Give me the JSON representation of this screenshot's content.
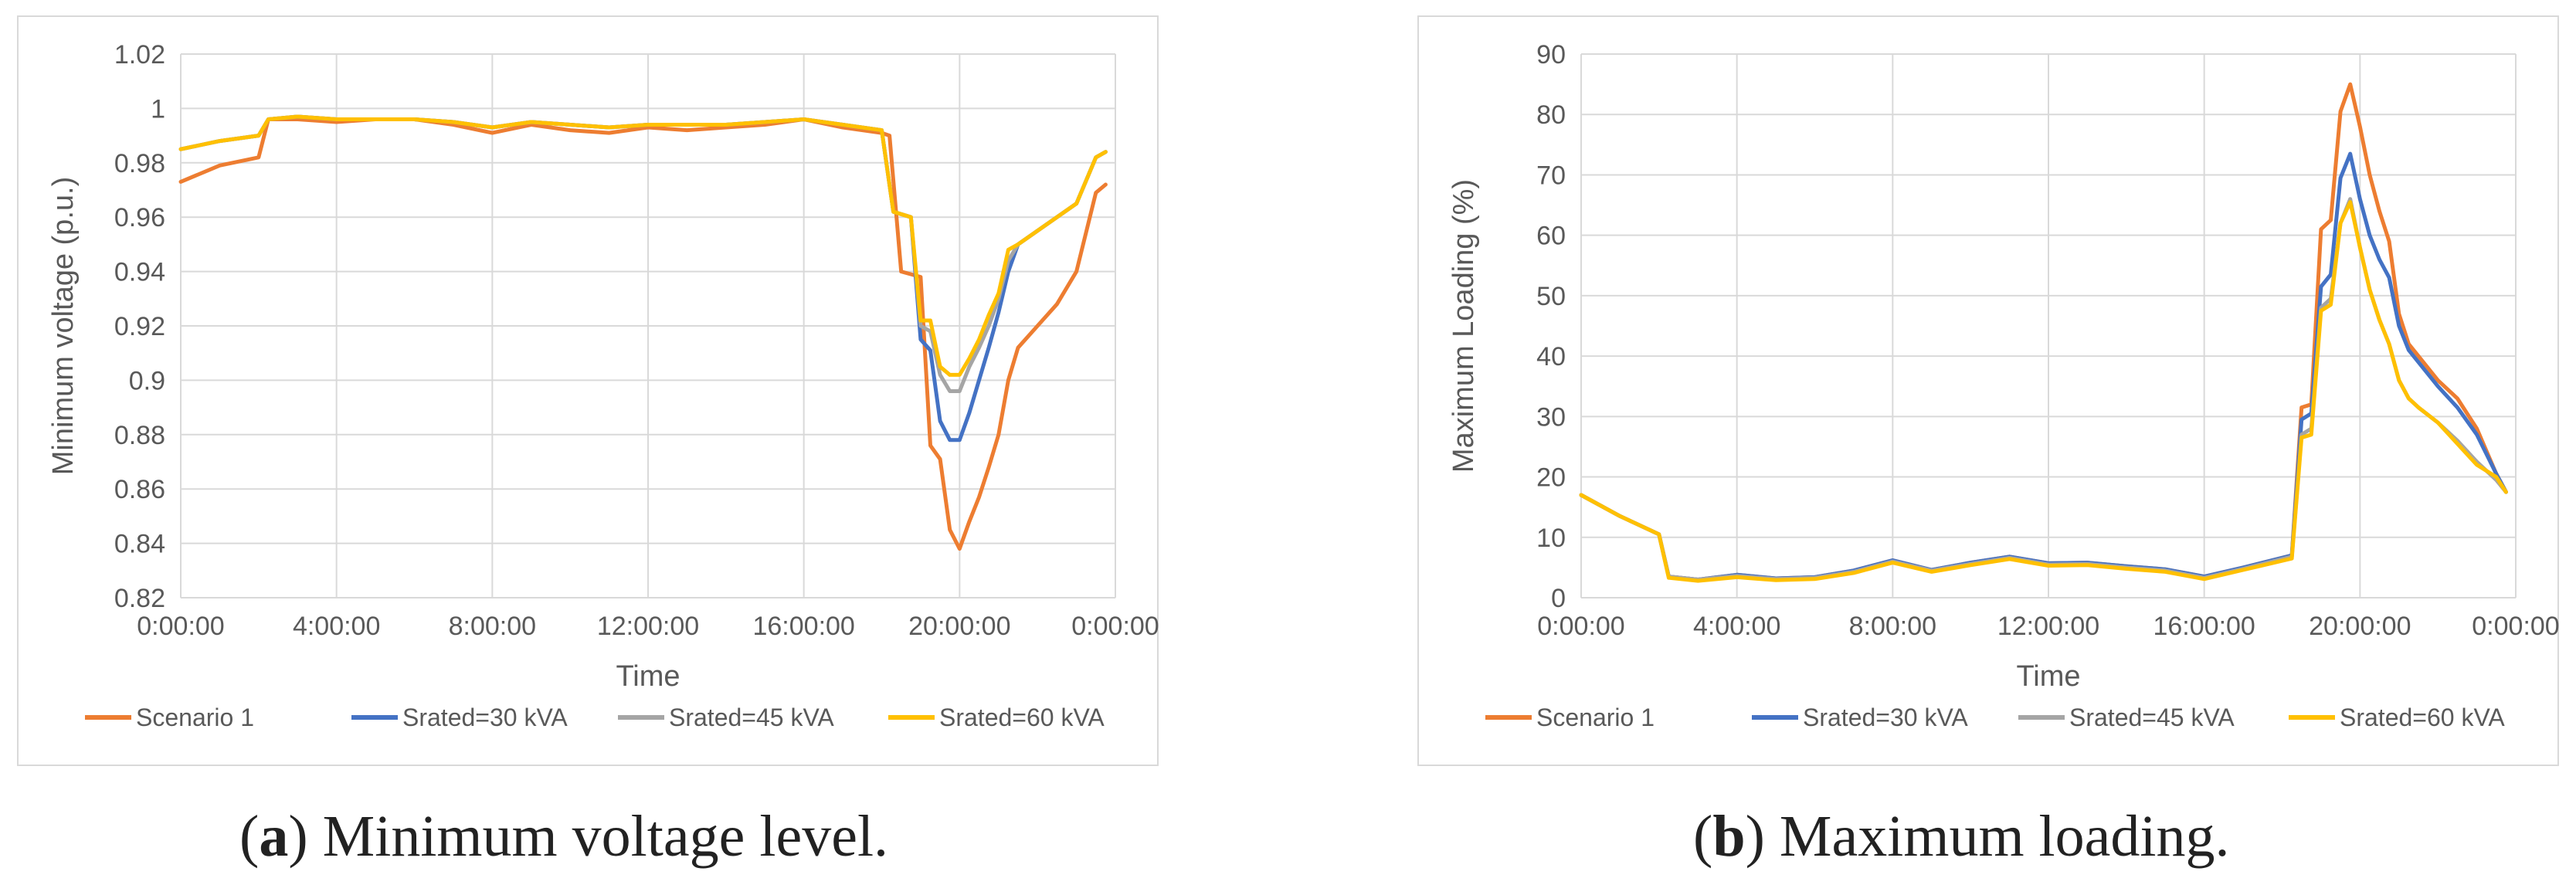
{
  "colors": {
    "scenario1": "#ED7D31",
    "s30": "#4472C4",
    "s45": "#A5A5A5",
    "s60": "#FFC000",
    "grid": "#d9d9d9",
    "text": "#595959"
  },
  "captions": {
    "a": {
      "tag": "a",
      "open": "(",
      "close": ")",
      "text": "Minimum voltage level."
    },
    "b": {
      "tag": "b",
      "open": "(",
      "close": ")",
      "text": "Maximum loading."
    }
  },
  "chart_data": [
    {
      "id": "a",
      "type": "line",
      "title": "",
      "xlabel": "Time",
      "ylabel": "Minimum voltage (p.u.)",
      "xlim": [
        0,
        24
      ],
      "ylim": [
        0.82,
        1.02
      ],
      "yticks": [
        0.82,
        0.84,
        0.86,
        0.88,
        0.9,
        0.92,
        0.94,
        0.96,
        0.98,
        1,
        1.02
      ],
      "ytick_labels": [
        "0.82",
        "0.84",
        "0.86",
        "0.88",
        "0.9",
        "0.92",
        "0.94",
        "0.96",
        "0.98",
        "1",
        "1.02"
      ],
      "xticks": [
        0,
        4,
        8,
        12,
        16,
        20,
        24
      ],
      "xtick_labels": [
        "0:00:00",
        "4:00:00",
        "8:00:00",
        "12:00:00",
        "16:00:00",
        "20:00:00",
        "0:00:00"
      ],
      "legend_position": "bottom",
      "series": [
        {
          "name": "Scenario 1",
          "color_key": "scenario1",
          "x": [
            0,
            1,
            2,
            2.25,
            3,
            4,
            5,
            6,
            7,
            8,
            9,
            10,
            11,
            12,
            13,
            14,
            15,
            16,
            17,
            18,
            18.2,
            18.5,
            18.75,
            19,
            19.25,
            19.5,
            19.75,
            20,
            20.25,
            20.5,
            20.75,
            21,
            21.25,
            21.5,
            22,
            22.5,
            23,
            23.5,
            23.75
          ],
          "y": [
            0.973,
            0.979,
            0.982,
            0.996,
            0.996,
            0.995,
            0.996,
            0.996,
            0.994,
            0.991,
            0.994,
            0.992,
            0.991,
            0.993,
            0.992,
            0.993,
            0.994,
            0.996,
            0.993,
            0.991,
            0.99,
            0.94,
            0.939,
            0.938,
            0.876,
            0.871,
            0.845,
            0.838,
            0.848,
            0.857,
            0.868,
            0.88,
            0.9,
            0.912,
            0.92,
            0.928,
            0.94,
            0.969,
            0.972
          ]
        },
        {
          "name": "Srated=30 kVA",
          "color_key": "s30",
          "x": [
            0,
            1,
            2,
            2.25,
            3,
            4,
            5,
            6,
            7,
            8,
            9,
            10,
            11,
            12,
            13,
            14,
            15,
            16,
            17,
            18,
            18.3,
            18.75,
            19,
            19.25,
            19.5,
            19.75,
            20,
            20.25,
            20.5,
            20.75,
            21,
            21.25,
            21.5,
            22,
            22.5,
            23,
            23.5,
            23.75
          ],
          "y": [
            0.985,
            0.988,
            0.99,
            0.996,
            0.997,
            0.996,
            0.996,
            0.996,
            0.995,
            0.993,
            0.995,
            0.994,
            0.993,
            0.994,
            0.994,
            0.994,
            0.995,
            0.996,
            0.994,
            0.992,
            0.962,
            0.96,
            0.915,
            0.911,
            0.885,
            0.878,
            0.878,
            0.888,
            0.9,
            0.912,
            0.925,
            0.94,
            0.95,
            0.955,
            0.96,
            0.965,
            0.982,
            0.984
          ]
        },
        {
          "name": "Srated=45 kVA",
          "color_key": "s45",
          "x": [
            0,
            1,
            2,
            2.25,
            3,
            4,
            5,
            6,
            7,
            8,
            9,
            10,
            11,
            12,
            13,
            14,
            15,
            16,
            17,
            18,
            18.3,
            18.75,
            19,
            19.25,
            19.5,
            19.75,
            20,
            20.25,
            20.5,
            20.75,
            21,
            21.25,
            21.5,
            22,
            22.5,
            23,
            23.5,
            23.75
          ],
          "y": [
            0.985,
            0.988,
            0.99,
            0.996,
            0.997,
            0.996,
            0.996,
            0.996,
            0.995,
            0.993,
            0.995,
            0.994,
            0.993,
            0.994,
            0.994,
            0.994,
            0.995,
            0.996,
            0.994,
            0.992,
            0.962,
            0.96,
            0.92,
            0.918,
            0.902,
            0.896,
            0.896,
            0.905,
            0.912,
            0.92,
            0.93,
            0.944,
            0.95,
            0.955,
            0.96,
            0.965,
            0.982,
            0.984
          ]
        },
        {
          "name": "Srated=60 kVA",
          "color_key": "s60",
          "x": [
            0,
            1,
            2,
            2.25,
            3,
            4,
            5,
            6,
            7,
            8,
            9,
            10,
            11,
            12,
            13,
            14,
            15,
            16,
            17,
            18,
            18.3,
            18.75,
            19,
            19.25,
            19.5,
            19.75,
            20,
            20.25,
            20.5,
            20.75,
            21,
            21.25,
            21.5,
            22,
            22.5,
            23,
            23.5,
            23.75
          ],
          "y": [
            0.985,
            0.988,
            0.99,
            0.996,
            0.997,
            0.996,
            0.996,
            0.996,
            0.995,
            0.993,
            0.995,
            0.994,
            0.993,
            0.994,
            0.994,
            0.994,
            0.995,
            0.996,
            0.994,
            0.992,
            0.962,
            0.96,
            0.922,
            0.922,
            0.905,
            0.902,
            0.902,
            0.908,
            0.915,
            0.924,
            0.932,
            0.948,
            0.95,
            0.955,
            0.96,
            0.965,
            0.982,
            0.984
          ]
        }
      ]
    },
    {
      "id": "b",
      "type": "line",
      "title": "",
      "xlabel": "Time",
      "ylabel": "Maximum Loading (%)",
      "xlim": [
        0,
        24
      ],
      "ylim": [
        0,
        90
      ],
      "yticks": [
        0,
        10,
        20,
        30,
        40,
        50,
        60,
        70,
        80,
        90
      ],
      "ytick_labels": [
        "0",
        "10",
        "20",
        "30",
        "40",
        "50",
        "60",
        "70",
        "80",
        "90"
      ],
      "xticks": [
        0,
        4,
        8,
        12,
        16,
        20,
        24
      ],
      "xtick_labels": [
        "0:00:00",
        "4:00:00",
        "8:00:00",
        "12:00:00",
        "16:00:00",
        "20:00:00",
        "0:00:00"
      ],
      "legend_position": "bottom",
      "series": [
        {
          "name": "Scenario 1",
          "color_key": "scenario1",
          "x": [
            0,
            1,
            2,
            2.25,
            3,
            4,
            5,
            6,
            7,
            8,
            9,
            10,
            11,
            12,
            13,
            14,
            15,
            16,
            17,
            18.25,
            18.5,
            18.75,
            19,
            19.25,
            19.5,
            19.75,
            20,
            20.25,
            20.5,
            20.75,
            21,
            21.25,
            21.5,
            22,
            22.5,
            23,
            23.5,
            23.75
          ],
          "y": [
            17,
            13.5,
            10.5,
            3.5,
            3,
            3.8,
            3.2,
            3.4,
            4.5,
            6.2,
            4.6,
            5.8,
            6.8,
            5.7,
            5.8,
            5.2,
            4.7,
            3.5,
            5,
            7,
            31.5,
            32,
            61,
            62.5,
            80.5,
            85,
            78,
            70,
            64,
            59,
            47,
            42,
            40,
            36,
            33,
            28,
            20.5,
            17.5
          ]
        },
        {
          "name": "Srated=30 kVA",
          "color_key": "s30",
          "x": [
            0,
            1,
            2,
            2.25,
            3,
            4,
            5,
            6,
            7,
            8,
            9,
            10,
            11,
            12,
            13,
            14,
            15,
            16,
            17,
            18.25,
            18.5,
            18.75,
            19,
            19.25,
            19.5,
            19.75,
            20,
            20.25,
            20.5,
            20.75,
            21,
            21.25,
            21.5,
            22,
            22.5,
            23,
            23.5,
            23.75
          ],
          "y": [
            17,
            13.5,
            10.5,
            3.5,
            3,
            3.8,
            3.2,
            3.4,
            4.5,
            6.2,
            4.6,
            5.8,
            6.8,
            5.7,
            5.8,
            5.2,
            4.7,
            3.5,
            5,
            7,
            29.5,
            30.5,
            51.5,
            53.5,
            69.5,
            73.5,
            66,
            60,
            56,
            53,
            45,
            41,
            39,
            35,
            31.5,
            27,
            20.5,
            17.5
          ]
        },
        {
          "name": "Srated=45 kVA",
          "color_key": "s45",
          "x": [
            0,
            1,
            2,
            2.25,
            3,
            4,
            5,
            6,
            7,
            8,
            9,
            10,
            11,
            12,
            13,
            14,
            15,
            16,
            17,
            18.25,
            18.5,
            18.75,
            19,
            19.25,
            19.5,
            19.75,
            20,
            20.25,
            20.5,
            20.75,
            21,
            21.25,
            21.5,
            22,
            22.5,
            23,
            23.5,
            23.75
          ],
          "y": [
            17,
            13.5,
            10.5,
            3.5,
            3,
            3.6,
            3.1,
            3.3,
            4.3,
            6,
            4.5,
            5.6,
            6.6,
            5.5,
            5.6,
            5,
            4.5,
            3.3,
            4.8,
            6.8,
            27,
            28,
            48,
            49.5,
            62,
            66,
            58,
            51,
            46,
            42,
            36,
            33,
            31.5,
            29,
            26,
            22.5,
            19.5,
            17.5
          ]
        },
        {
          "name": "Srated=60 kVA",
          "color_key": "s60",
          "x": [
            0,
            1,
            2,
            2.25,
            3,
            4,
            5,
            6,
            7,
            8,
            9,
            10,
            11,
            12,
            13,
            14,
            15,
            16,
            17,
            18.25,
            18.5,
            18.75,
            19,
            19.25,
            19.5,
            19.75,
            20,
            20.25,
            20.5,
            20.75,
            21,
            21.25,
            21.5,
            22,
            22.5,
            23,
            23.5,
            23.75
          ],
          "y": [
            17,
            13.5,
            10.5,
            3.3,
            2.8,
            3.4,
            2.9,
            3.1,
            4.1,
            5.8,
            4.3,
            5.4,
            6.4,
            5.3,
            5.4,
            4.8,
            4.3,
            3.1,
            4.6,
            6.5,
            26.5,
            27,
            47.5,
            48.5,
            62,
            65.5,
            58,
            51,
            46,
            42,
            36,
            33,
            31.5,
            29,
            25.5,
            22,
            20,
            17.5
          ]
        }
      ]
    }
  ]
}
